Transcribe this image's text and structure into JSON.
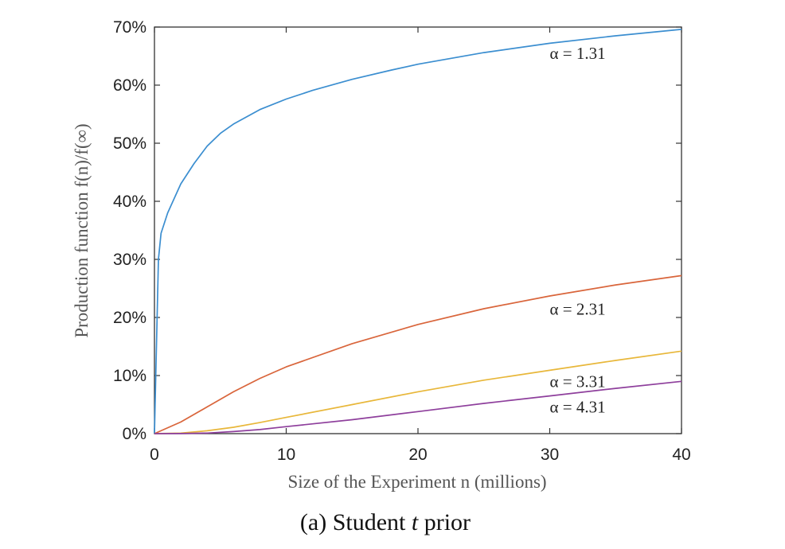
{
  "chart_data": {
    "type": "line",
    "xlabel": "Size of the Experiment n (millions)",
    "ylabel": "Production function f(n)/f(∞)",
    "caption": {
      "prefix": "(a) Student ",
      "italic": "t",
      "suffix": " prior"
    },
    "xlim": [
      0,
      40
    ],
    "ylim": [
      0,
      70
    ],
    "xticks": [
      0,
      10,
      20,
      30,
      40
    ],
    "yticks": [
      0,
      10,
      20,
      30,
      40,
      50,
      60,
      70
    ],
    "ytick_suffix": "%",
    "grid": false,
    "series": [
      {
        "label": "α = 1.31",
        "color": "#3b8ed0",
        "label_at": [
          30,
          64.5
        ],
        "x": [
          0,
          0.3,
          0.5,
          1,
          2,
          3,
          4,
          5,
          6,
          8,
          10,
          12,
          15,
          18,
          20,
          25,
          30,
          35,
          40
        ],
        "y": [
          0,
          30,
          34.5,
          38,
          43,
          46.5,
          49.5,
          51.7,
          53.3,
          55.8,
          57.6,
          59.1,
          61.0,
          62.6,
          63.6,
          65.6,
          67.2,
          68.5,
          69.6
        ]
      },
      {
        "label": "α = 2.31",
        "color": "#d9653b",
        "label_at": [
          30,
          20.5
        ],
        "x": [
          0,
          2,
          4,
          6,
          8,
          10,
          15,
          20,
          25,
          30,
          35,
          40
        ],
        "y": [
          0,
          2.0,
          4.6,
          7.2,
          9.5,
          11.5,
          15.5,
          18.8,
          21.5,
          23.7,
          25.6,
          27.2
        ]
      },
      {
        "label": "α = 3.31",
        "color": "#e8b73a",
        "label_at": [
          30,
          8.0
        ],
        "x": [
          0,
          2,
          4,
          6,
          8,
          10,
          15,
          20,
          25,
          30,
          35,
          40
        ],
        "y": [
          0,
          0.1,
          0.5,
          1.1,
          1.9,
          2.8,
          5.0,
          7.2,
          9.2,
          10.9,
          12.6,
          14.2
        ]
      },
      {
        "label": "α = 4.31",
        "color": "#8e3f9c",
        "label_at": [
          30,
          3.6
        ],
        "x": [
          0,
          2,
          4,
          6,
          8,
          10,
          15,
          20,
          25,
          30,
          35,
          40
        ],
        "y": [
          0,
          0.02,
          0.1,
          0.35,
          0.7,
          1.2,
          2.4,
          3.8,
          5.2,
          6.5,
          7.8,
          9.0
        ]
      }
    ]
  }
}
